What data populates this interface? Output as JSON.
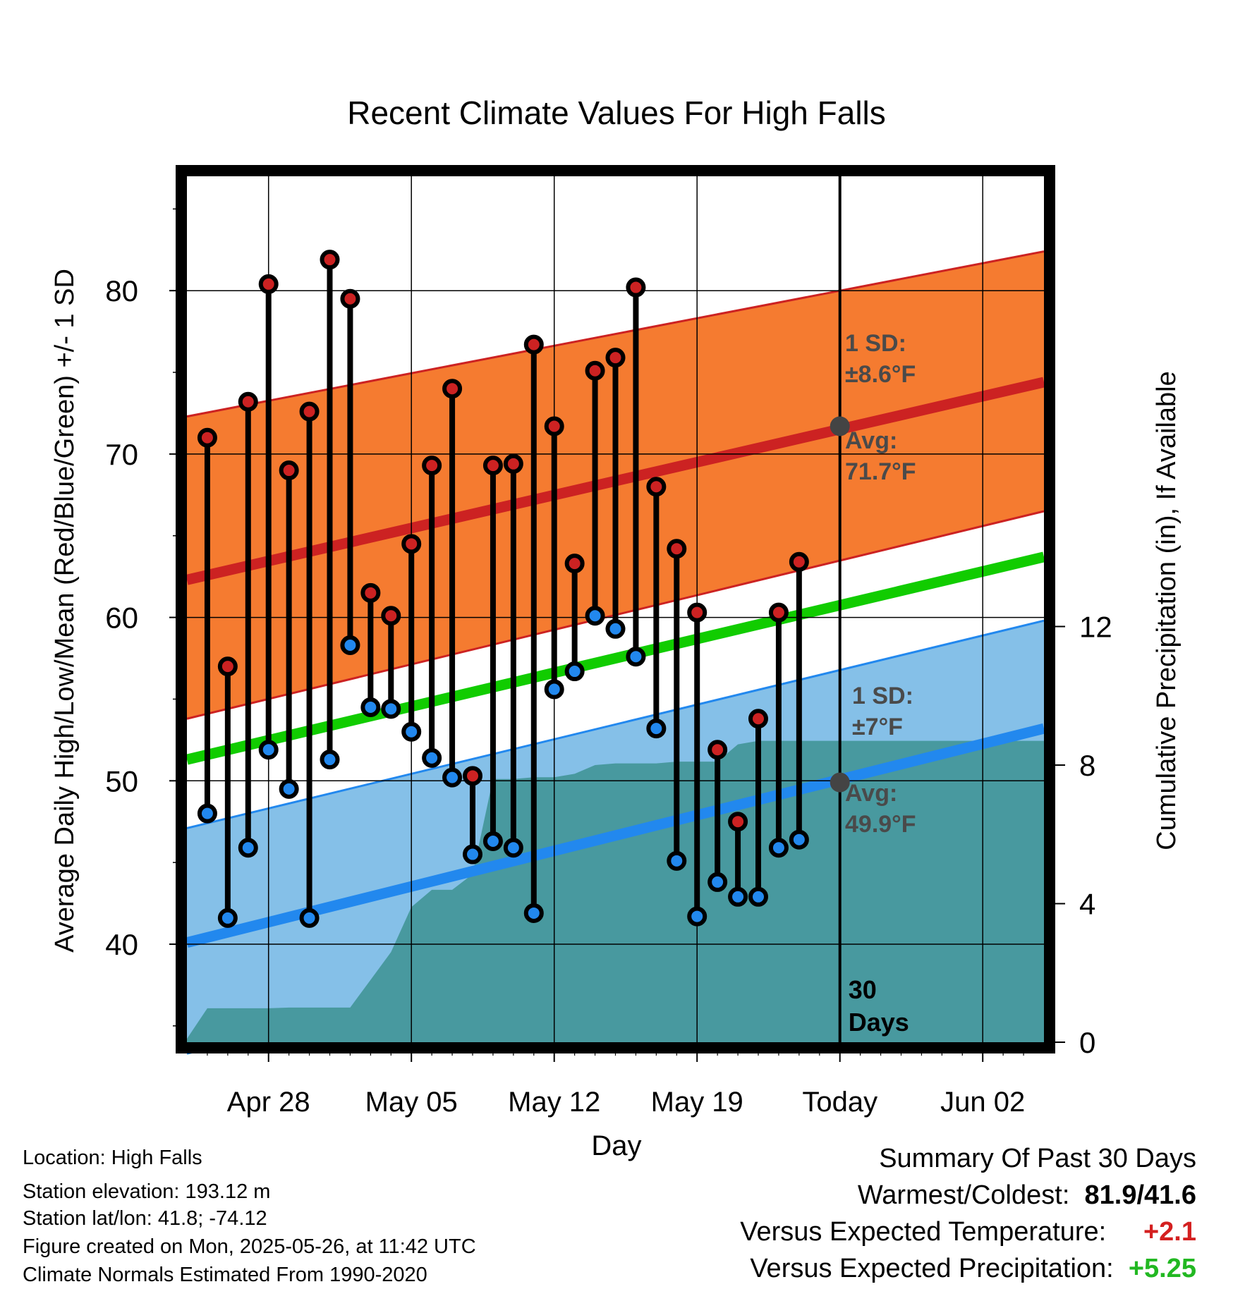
{
  "chart_data": {
    "type": "line",
    "title": "Recent Climate Values For High Falls",
    "xlabel": "Day",
    "ylabel": "Average Daily High/Low/Mean (Red/Blue/Green) +/- 1 SD",
    "y2label": "Cumulative Precipitation (in), If Available",
    "x_range": [
      "2025-04-24",
      "2025-06-05"
    ],
    "ylim": [
      34,
      87
    ],
    "y2lim": [
      0,
      25
    ],
    "x_ticks": [
      {
        "date": "2025-04-28",
        "label": "Apr 28"
      },
      {
        "date": "2025-05-05",
        "label": "May 05"
      },
      {
        "date": "2025-05-12",
        "label": "May 12"
      },
      {
        "date": "2025-05-19",
        "label": "May 19"
      },
      {
        "date": "2025-05-26",
        "label": "Today"
      },
      {
        "date": "2025-06-02",
        "label": "Jun 02"
      }
    ],
    "y_ticks": [
      40,
      50,
      60,
      70,
      80
    ],
    "y2_ticks": [
      0,
      4,
      8,
      12
    ],
    "grid": true,
    "today": "2025-05-26",
    "today_label": [
      "30",
      "Days"
    ],
    "colors": {
      "high": "#cc2222",
      "low": "#2288ee",
      "mean": "#11cc00",
      "high_band": "#f57b30",
      "low_band": "#85c0e8",
      "precip": "#48999f"
    },
    "normals": {
      "high_mean": [
        [
          "2025-04-24",
          62.3
        ],
        [
          "2025-06-05",
          74.4
        ]
      ],
      "high_sd_upper": [
        [
          "2025-04-24",
          72.3
        ],
        [
          "2025-06-05",
          82.4
        ]
      ],
      "high_sd_lower": [
        [
          "2025-04-24",
          53.8
        ],
        [
          "2025-06-05",
          66.5
        ]
      ],
      "low_mean": [
        [
          "2025-04-24",
          40.1
        ],
        [
          "2025-06-05",
          53.2
        ]
      ],
      "low_sd_upper": [
        [
          "2025-04-24",
          47.1
        ],
        [
          "2025-06-05",
          59.8
        ]
      ],
      "low_sd_lower": [
        [
          "2025-04-24",
          33.3
        ],
        [
          "2025-06-05",
          45.5
        ]
      ],
      "mean": [
        [
          "2025-04-24",
          51.3
        ],
        [
          "2025-06-05",
          63.7
        ]
      ]
    },
    "annotations": {
      "high": {
        "sd_label": "1 SD:",
        "sd_value": "±8.6°F",
        "avg_label": "Avg:",
        "avg_value": "71.7°F",
        "avg_y": 71.7
      },
      "low": {
        "sd_label": "1 SD:",
        "sd_value": "±7°F",
        "avg_label": "Avg:",
        "avg_value": "49.9°F",
        "avg_y": 49.9
      }
    },
    "series": [
      {
        "name": "High",
        "x": [
          "2025-04-25",
          "2025-04-26",
          "2025-04-27",
          "2025-04-28",
          "2025-04-29",
          "2025-04-30",
          "2025-05-01",
          "2025-05-02",
          "2025-05-03",
          "2025-05-04",
          "2025-05-05",
          "2025-05-06",
          "2025-05-07",
          "2025-05-08",
          "2025-05-09",
          "2025-05-10",
          "2025-05-11",
          "2025-05-12",
          "2025-05-13",
          "2025-05-14",
          "2025-05-15",
          "2025-05-16",
          "2025-05-17",
          "2025-05-18",
          "2025-05-19",
          "2025-05-20",
          "2025-05-21",
          "2025-05-22",
          "2025-05-23",
          "2025-05-24",
          "2025-05-25"
        ],
        "values": [
          71.0,
          57.0,
          73.2,
          80.4,
          69.0,
          72.6,
          81.9,
          79.5,
          61.5,
          60.1,
          64.5,
          69.3,
          74.0,
          50.3,
          69.3,
          69.4,
          76.7,
          71.7,
          63.3,
          75.1,
          75.9,
          80.2,
          68.0,
          64.2,
          60.3,
          51.9,
          47.5,
          53.8,
          60.3,
          63.4,
          null
        ]
      },
      {
        "name": "Low",
        "x": [
          "2025-04-25",
          "2025-04-26",
          "2025-04-27",
          "2025-04-28",
          "2025-04-29",
          "2025-04-30",
          "2025-05-01",
          "2025-05-02",
          "2025-05-03",
          "2025-05-04",
          "2025-05-05",
          "2025-05-06",
          "2025-05-07",
          "2025-05-08",
          "2025-05-09",
          "2025-05-10",
          "2025-05-11",
          "2025-05-12",
          "2025-05-13",
          "2025-05-14",
          "2025-05-15",
          "2025-05-16",
          "2025-05-17",
          "2025-05-18",
          "2025-05-19",
          "2025-05-20",
          "2025-05-21",
          "2025-05-22",
          "2025-05-23",
          "2025-05-24",
          "2025-05-25"
        ],
        "values": [
          48.0,
          41.6,
          45.9,
          51.9,
          49.5,
          41.6,
          51.3,
          58.3,
          54.5,
          54.4,
          53.0,
          51.4,
          50.2,
          45.5,
          46.3,
          45.9,
          41.9,
          55.6,
          56.7,
          60.1,
          59.3,
          57.6,
          53.2,
          45.1,
          41.7,
          43.8,
          42.9,
          42.9,
          45.9,
          46.4,
          null
        ]
      },
      {
        "name": "Cumulative Precipitation",
        "x": [
          "2025-04-24",
          "2025-04-25",
          "2025-04-28",
          "2025-04-29",
          "2025-04-30",
          "2025-05-01",
          "2025-05-02",
          "2025-05-03",
          "2025-05-04",
          "2025-05-05",
          "2025-05-06",
          "2025-05-07",
          "2025-05-08",
          "2025-05-09",
          "2025-05-10",
          "2025-05-11",
          "2025-05-12",
          "2025-05-13",
          "2025-05-14",
          "2025-05-15",
          "2025-05-16",
          "2025-05-17",
          "2025-05-18",
          "2025-05-19",
          "2025-05-20",
          "2025-05-21",
          "2025-05-22",
          "2025-05-23",
          "2025-05-24",
          "2025-05-25",
          "2025-05-26",
          "2025-06-05"
        ],
        "values": [
          0.1,
          0.98,
          0.98,
          1.0,
          1.0,
          1.0,
          1.0,
          1.8,
          2.6,
          3.9,
          4.4,
          4.4,
          4.85,
          7.6,
          7.6,
          7.65,
          7.65,
          7.75,
          8.0,
          8.05,
          8.05,
          8.05,
          8.1,
          8.1,
          8.1,
          8.6,
          8.7,
          8.7,
          8.7,
          8.7,
          8.7,
          8.7
        ]
      }
    ]
  },
  "station": {
    "location": "Location: High Falls",
    "elevation": "Station elevation: 193.12 m",
    "latlon": "Station lat/lon: 41.8; -74.12",
    "created": "Figure created on Mon, 2025-05-26, at 11:42 UTC",
    "normals": "Climate Normals Estimated From 1990-2020"
  },
  "summary": {
    "title": "Summary Of Past 30 Days",
    "warm_cold_label": "Warmest/Coldest:",
    "warm_cold_value": "81.9/41.6",
    "temp_label": "Versus Expected Temperature:",
    "temp_value": "+2.1",
    "precip_label": "Versus Expected Precipitation:",
    "precip_value": "+5.25",
    "temp_color": "#d42020",
    "precip_color": "#22b822"
  }
}
